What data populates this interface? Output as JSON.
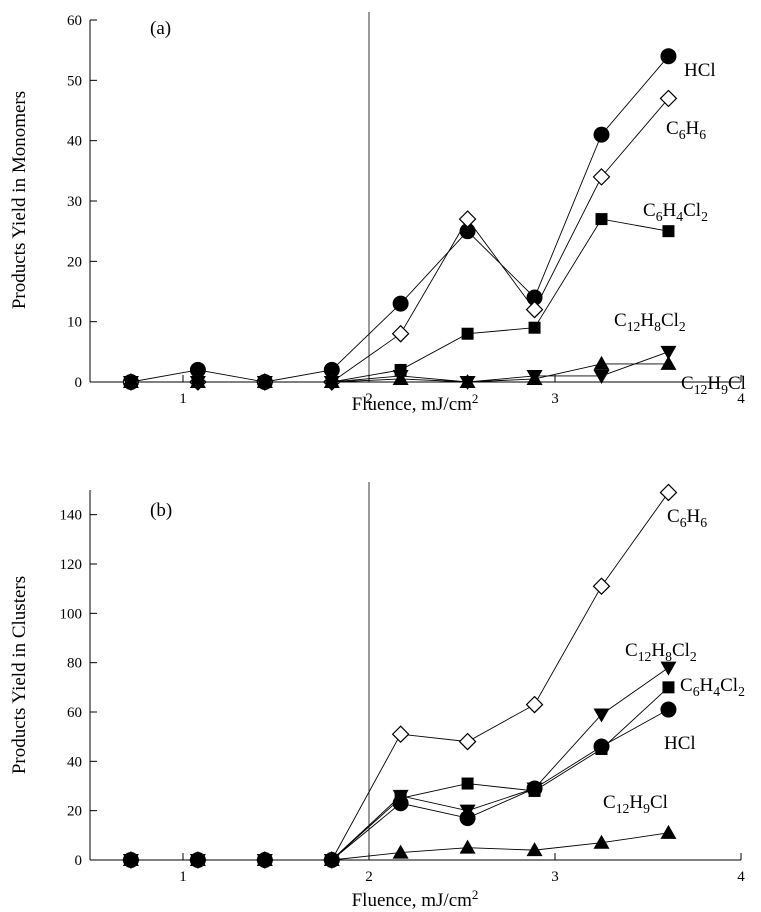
{
  "chart_data": [
    {
      "type": "line",
      "panel_label": "(a)",
      "xlabel": "Fluence, mJ/cm",
      "xlabel_sup": "2",
      "ylabel": "Products Yield in Monomers",
      "xlim": [
        0.5,
        4
      ],
      "ylim": [
        0,
        60
      ],
      "xticks": [
        1,
        2,
        3,
        4
      ],
      "yticks": [
        0,
        10,
        20,
        30,
        40,
        50,
        60
      ],
      "vline": 2,
      "x": [
        0.72,
        1.08,
        1.44,
        1.8,
        2.17,
        2.53,
        2.89,
        3.25,
        3.61
      ],
      "series": [
        {
          "name": "HCl",
          "marker": "circle",
          "values": [
            0,
            2,
            0,
            2,
            13,
            25,
            14,
            41,
            54
          ],
          "label_parts": [
            [
              "HCl",
              "n"
            ]
          ]
        },
        {
          "name": "C6H6",
          "marker": "diamond-open",
          "values": [
            0,
            0,
            0,
            0,
            8,
            27,
            12,
            34,
            47
          ],
          "label_parts": [
            [
              "C",
              "n"
            ],
            [
              "6",
              "sub"
            ],
            [
              "H",
              "n"
            ],
            [
              "6",
              "sub"
            ]
          ]
        },
        {
          "name": "C6H4Cl2",
          "marker": "square",
          "values": [
            0,
            0,
            0,
            0,
            2,
            8,
            9,
            27,
            25
          ],
          "label_parts": [
            [
              "C",
              "n"
            ],
            [
              "6",
              "sub"
            ],
            [
              "H",
              "n"
            ],
            [
              "4",
              "sub"
            ],
            [
              "Cl",
              "n"
            ],
            [
              "2",
              "sub"
            ]
          ]
        },
        {
          "name": "C12H8Cl2",
          "marker": "triangle-down",
          "values": [
            0,
            0,
            0,
            0,
            1,
            0,
            1,
            1,
            5
          ],
          "label_parts": [
            [
              "C",
              "n"
            ],
            [
              "12",
              "sub"
            ],
            [
              "H",
              "n"
            ],
            [
              "8",
              "sub"
            ],
            [
              "Cl",
              "n"
            ],
            [
              "2",
              "sub"
            ]
          ]
        },
        {
          "name": "C12H9Cl",
          "marker": "triangle-up",
          "values": [
            0,
            0,
            0,
            0,
            0.5,
            0,
            0.5,
            3,
            3
          ],
          "label_parts": [
            [
              "C",
              "n"
            ],
            [
              "12",
              "sub"
            ],
            [
              "H",
              "n"
            ],
            [
              "9",
              "sub"
            ],
            [
              "Cl",
              "n"
            ]
          ]
        }
      ]
    },
    {
      "type": "line",
      "panel_label": "(b)",
      "xlabel": "Fluence, mJ/cm",
      "xlabel_sup": "2",
      "ylabel": "Products Yield in Clusters",
      "xlim": [
        0.5,
        4
      ],
      "ylim": [
        0,
        150
      ],
      "xticks": [
        1,
        2,
        3,
        4
      ],
      "yticks": [
        0,
        20,
        40,
        60,
        80,
        100,
        120,
        140
      ],
      "vline": 2,
      "x": [
        0.72,
        1.08,
        1.44,
        1.8,
        2.17,
        2.53,
        2.89,
        3.25,
        3.61
      ],
      "series": [
        {
          "name": "C6H6",
          "marker": "diamond-open",
          "values": [
            0,
            0,
            0,
            0,
            51,
            48,
            63,
            111,
            149
          ],
          "label_parts": [
            [
              "C",
              "n"
            ],
            [
              "6",
              "sub"
            ],
            [
              "H",
              "n"
            ],
            [
              "6",
              "sub"
            ]
          ]
        },
        {
          "name": "C12H8Cl2",
          "marker": "triangle-down",
          "values": [
            0,
            0,
            0,
            0,
            26,
            20,
            29,
            59,
            78
          ],
          "label_parts": [
            [
              "C",
              "n"
            ],
            [
              "12",
              "sub"
            ],
            [
              "H",
              "n"
            ],
            [
              "8",
              "sub"
            ],
            [
              "Cl",
              "n"
            ],
            [
              "2",
              "sub"
            ]
          ]
        },
        {
          "name": "C6H4Cl2",
          "marker": "square",
          "values": [
            0,
            0,
            0,
            0,
            25,
            31,
            28,
            45,
            70
          ],
          "label_parts": [
            [
              "C",
              "n"
            ],
            [
              "6",
              "sub"
            ],
            [
              "H",
              "n"
            ],
            [
              "4",
              "sub"
            ],
            [
              "Cl",
              "n"
            ],
            [
              "2",
              "sub"
            ]
          ]
        },
        {
          "name": "HCl",
          "marker": "circle",
          "values": [
            0,
            0,
            0,
            0,
            23,
            17,
            29,
            46,
            61
          ],
          "label_parts": [
            [
              "HCl",
              "n"
            ]
          ]
        },
        {
          "name": "C12H9Cl",
          "marker": "triangle-up",
          "values": [
            0,
            0,
            0,
            0,
            3,
            5,
            4,
            7,
            11
          ],
          "label_parts": [
            [
              "C",
              "n"
            ],
            [
              "12",
              "sub"
            ],
            [
              "H",
              "n"
            ],
            [
              "9",
              "sub"
            ],
            [
              "Cl",
              "n"
            ]
          ]
        }
      ]
    }
  ]
}
